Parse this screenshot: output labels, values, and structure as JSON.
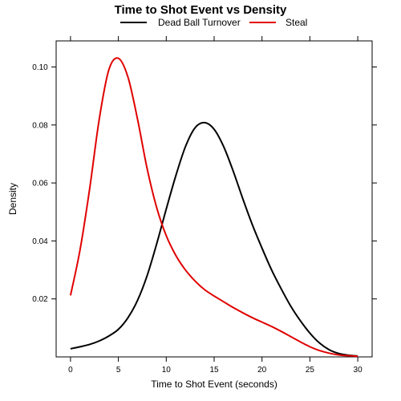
{
  "chart_data": {
    "type": "line",
    "title": "Time to Shot Event vs Density",
    "xlabel": "Time to Shot Event (seconds)",
    "ylabel": "Density",
    "xlim": [
      -1.5,
      31.5
    ],
    "ylim": [
      0.0,
      0.109
    ],
    "x_ticks": [
      0,
      5,
      10,
      15,
      20,
      25,
      30
    ],
    "y_ticks": [
      0.02,
      0.04,
      0.06,
      0.08,
      0.1
    ],
    "x_tick_labels": [
      "0",
      "5",
      "10",
      "15",
      "20",
      "25",
      "30"
    ],
    "y_tick_labels": [
      "0.02",
      "0.04",
      "0.06",
      "0.08",
      "0.10"
    ],
    "legend_position": "top",
    "grid": false,
    "series": [
      {
        "name": "Dead Ball Turnover",
        "color": "#000000",
        "x": [
          0,
          1,
          2,
          3,
          4,
          5,
          6,
          7,
          8,
          9,
          10,
          11,
          12,
          13,
          14,
          15,
          16,
          17,
          18,
          19,
          20,
          21,
          22,
          23,
          24,
          25,
          26,
          27,
          28,
          29,
          30
        ],
        "y": [
          0.0028,
          0.0035,
          0.0043,
          0.0055,
          0.0072,
          0.0095,
          0.0135,
          0.0195,
          0.028,
          0.039,
          0.051,
          0.0625,
          0.0725,
          0.079,
          0.0808,
          0.0785,
          0.0725,
          0.064,
          0.0545,
          0.0455,
          0.0375,
          0.03,
          0.0235,
          0.0175,
          0.0125,
          0.0082,
          0.0048,
          0.0025,
          0.0012,
          0.0006,
          0.0003
        ]
      },
      {
        "name": "Steal",
        "color": "#e00000",
        "x": [
          0,
          1,
          2,
          3,
          4,
          5,
          6,
          7,
          8,
          9,
          10,
          11,
          12,
          13,
          14,
          15,
          16,
          17,
          18,
          19,
          20,
          21,
          22,
          23,
          24,
          25,
          26,
          27,
          28,
          29,
          30
        ],
        "y": [
          0.0212,
          0.037,
          0.058,
          0.082,
          0.099,
          0.103,
          0.0965,
          0.082,
          0.065,
          0.0515,
          0.0418,
          0.035,
          0.03,
          0.0262,
          0.0232,
          0.021,
          0.019,
          0.017,
          0.0152,
          0.0135,
          0.012,
          0.0105,
          0.0088,
          0.007,
          0.0052,
          0.0035,
          0.0022,
          0.0013,
          0.0007,
          0.0004,
          0.0002
        ]
      }
    ]
  }
}
